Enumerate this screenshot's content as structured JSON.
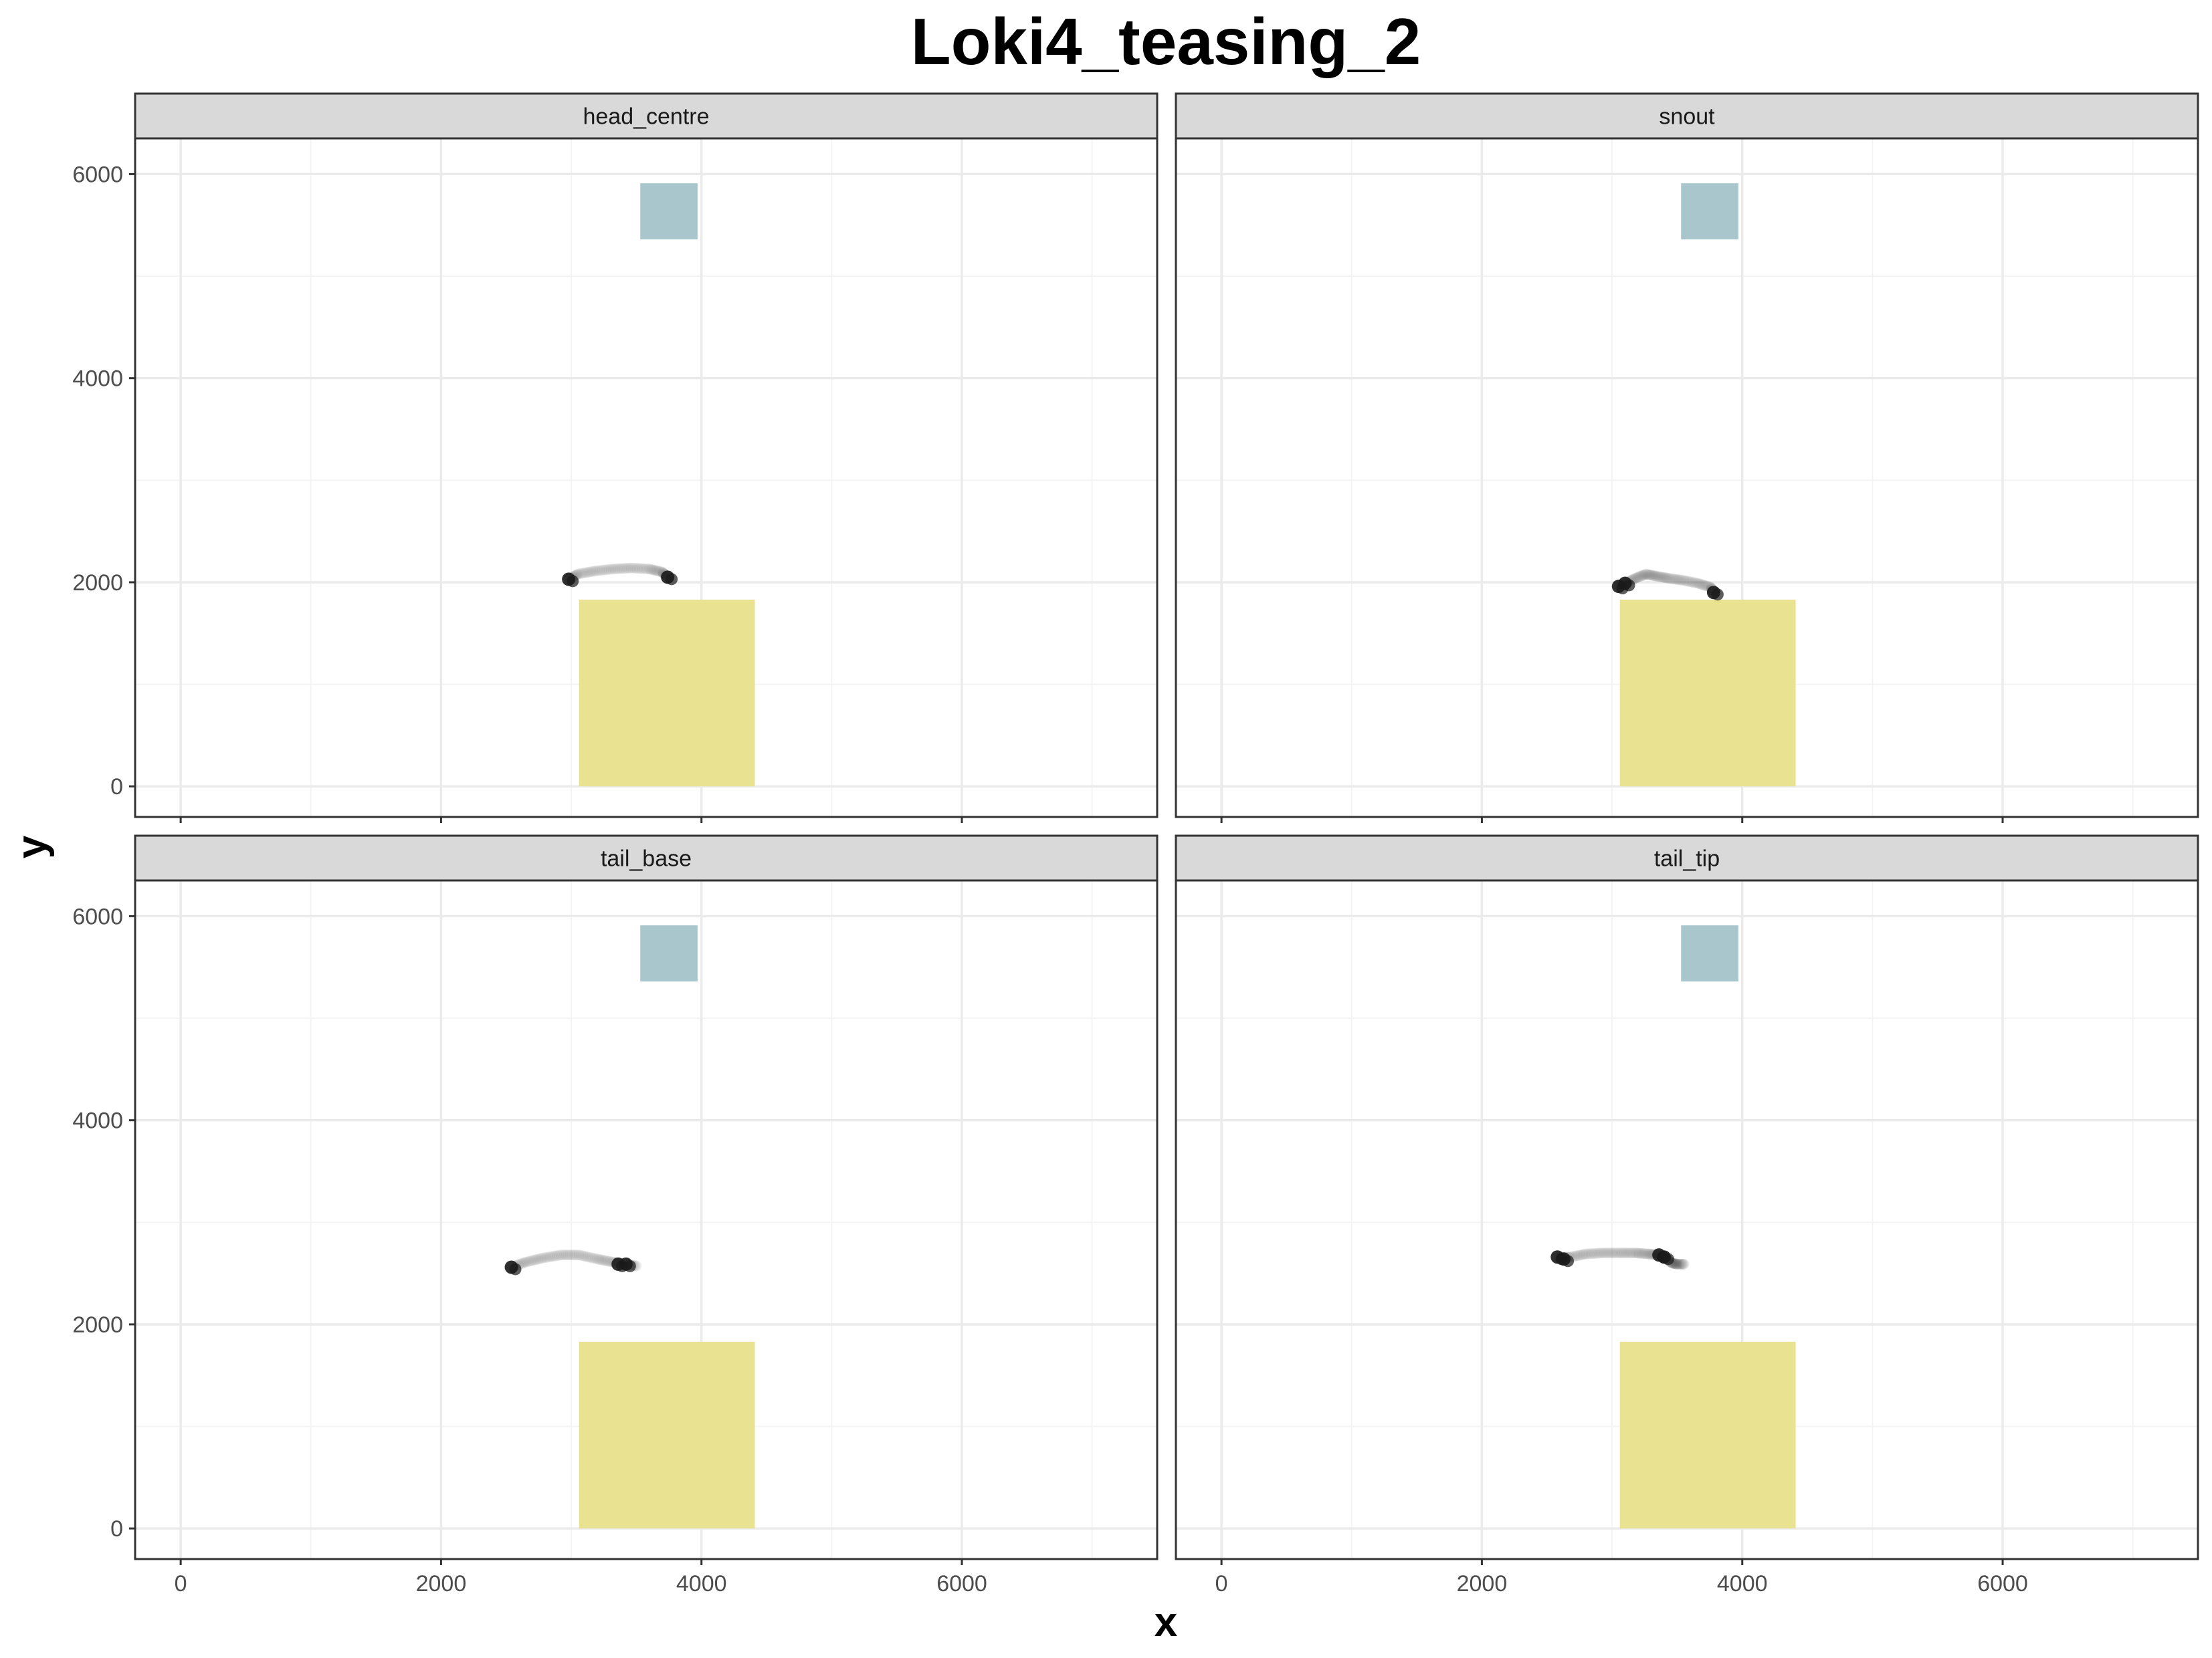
{
  "chart_data": {
    "type": "scatter",
    "title": "Loki4_teasing_2",
    "xlabel": "x",
    "ylabel": "y",
    "xlim": [
      -350,
      7500
    ],
    "ylim": [
      -300,
      6350
    ],
    "x_ticks": [
      0,
      2000,
      4000,
      6000
    ],
    "y_ticks": [
      0,
      2000,
      4000,
      6000
    ],
    "grid": true,
    "layout": "2x2 facets",
    "zones": [
      {
        "name": "blue-zone",
        "color": "#a8c6cc",
        "x": [
          3530,
          3970
        ],
        "y": [
          5360,
          5910
        ]
      },
      {
        "name": "yellow-zone",
        "color": "#e9e291",
        "x": [
          3060,
          4410
        ],
        "y": [
          0,
          1830
        ]
      }
    ],
    "point_color": "#1a1a1a",
    "facets": [
      {
        "label": "head_centre",
        "endpoints": [
          [
            2980,
            2030
          ],
          [
            3740,
            2050
          ]
        ],
        "track": [
          [
            2980,
            2030
          ],
          [
            3050,
            2080
          ],
          [
            3180,
            2110
          ],
          [
            3320,
            2130
          ],
          [
            3460,
            2140
          ],
          [
            3600,
            2130
          ],
          [
            3700,
            2100
          ],
          [
            3740,
            2050
          ]
        ]
      },
      {
        "label": "snout",
        "endpoints": [
          [
            3050,
            1960
          ],
          [
            3100,
            1990
          ],
          [
            3780,
            1900
          ]
        ],
        "track": [
          [
            3050,
            1960
          ],
          [
            3100,
            1990
          ],
          [
            3180,
            2040
          ],
          [
            3260,
            2080
          ],
          [
            3340,
            2060
          ],
          [
            3430,
            2040
          ],
          [
            3540,
            2020
          ],
          [
            3660,
            1990
          ],
          [
            3760,
            1950
          ],
          [
            3780,
            1900
          ]
        ]
      },
      {
        "label": "tail_base",
        "endpoints": [
          [
            2540,
            2560
          ],
          [
            3360,
            2590
          ],
          [
            3420,
            2590
          ]
        ],
        "track": [
          [
            2540,
            2560
          ],
          [
            2650,
            2610
          ],
          [
            2780,
            2650
          ],
          [
            2920,
            2680
          ],
          [
            3060,
            2680
          ],
          [
            3200,
            2640
          ],
          [
            3320,
            2610
          ],
          [
            3420,
            2590
          ],
          [
            3510,
            2570
          ]
        ]
      },
      {
        "label": "tail_tip",
        "endpoints": [
          [
            2580,
            2660
          ],
          [
            2630,
            2640
          ],
          [
            3360,
            2680
          ],
          [
            3400,
            2660
          ]
        ],
        "track": [
          [
            2580,
            2660
          ],
          [
            2680,
            2660
          ],
          [
            2800,
            2690
          ],
          [
            2930,
            2700
          ],
          [
            3060,
            2700
          ],
          [
            3180,
            2700
          ],
          [
            3280,
            2690
          ],
          [
            3360,
            2680
          ],
          [
            3420,
            2640
          ],
          [
            3460,
            2600
          ],
          [
            3500,
            2590
          ],
          [
            3560,
            2590
          ]
        ]
      }
    ]
  }
}
